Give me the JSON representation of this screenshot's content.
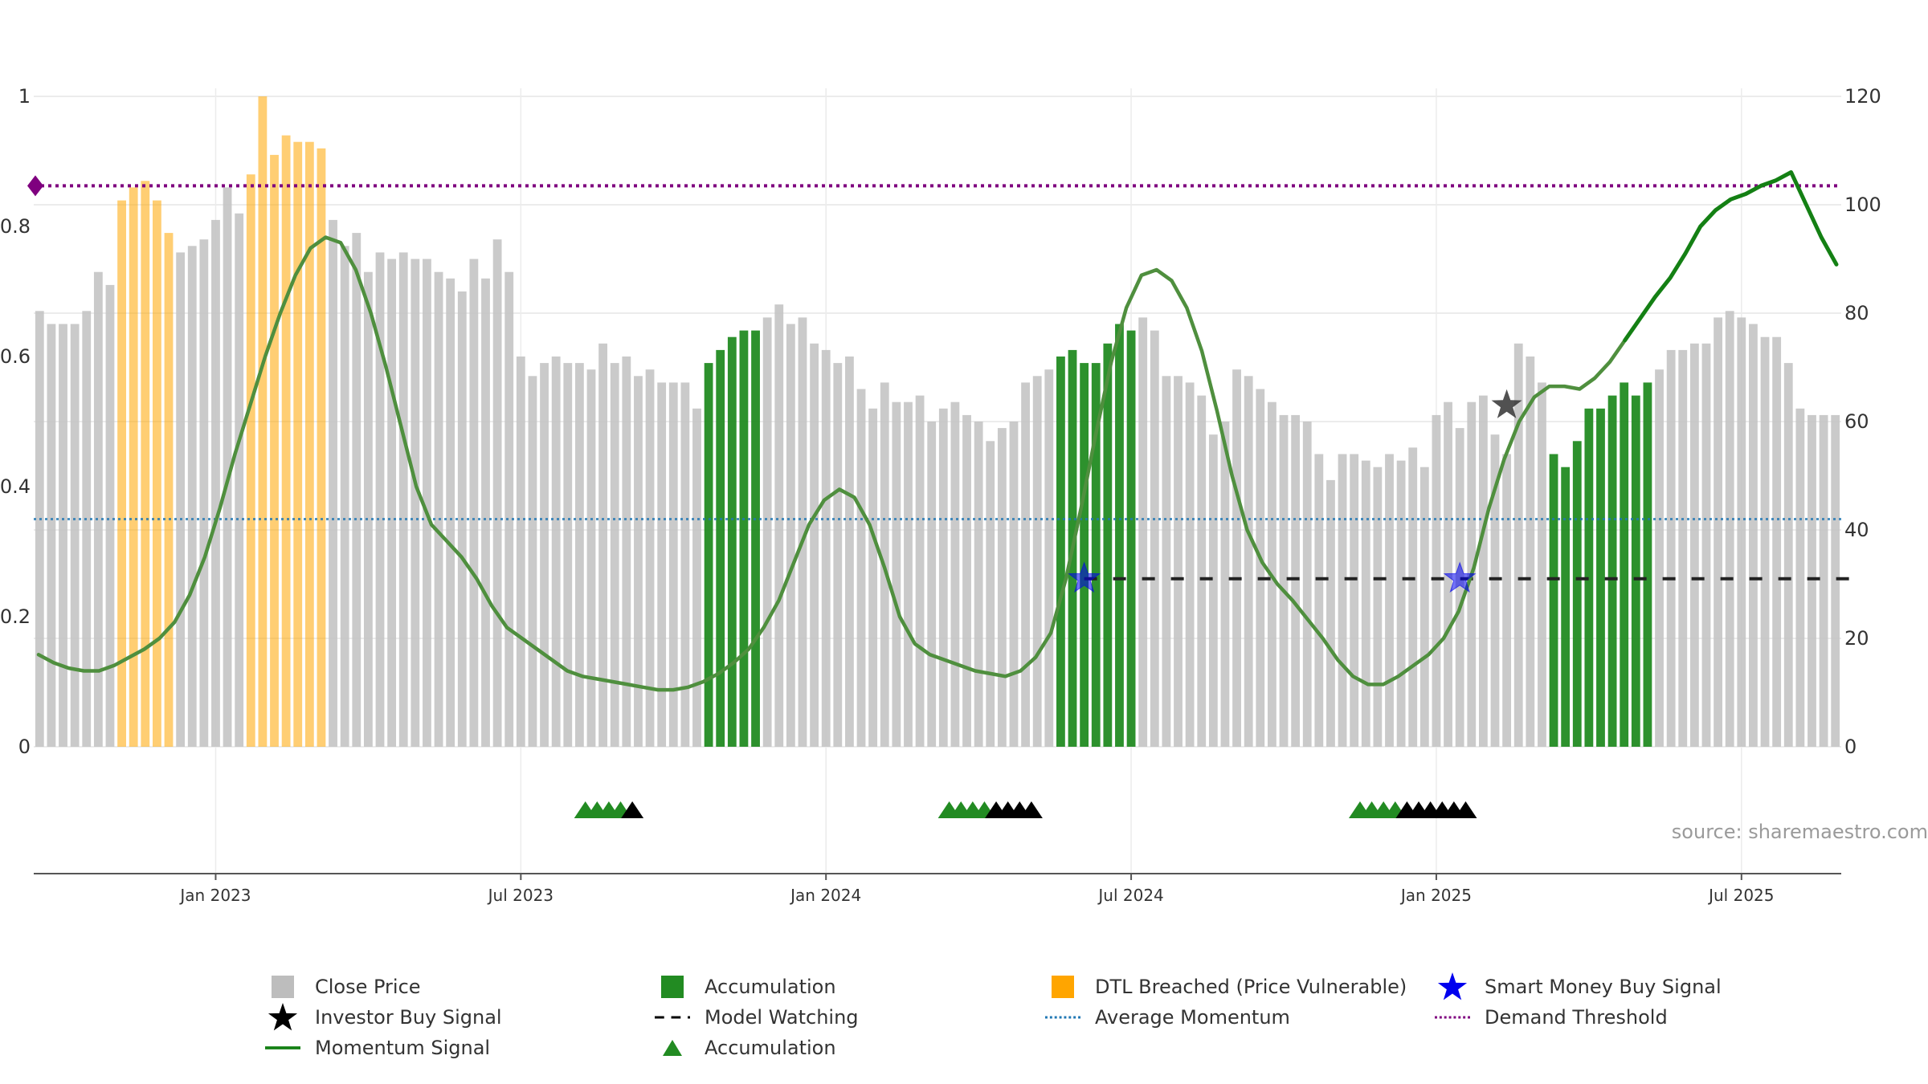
{
  "chart_data": {
    "type": "bar",
    "source": "source: sharemaestro.com",
    "left_axis": {
      "ticks": [
        "0",
        "0.2",
        "0.4",
        "0.6",
        "0.8",
        "1"
      ],
      "ylim": [
        0,
        1
      ]
    },
    "right_axis": {
      "ticks": [
        "0",
        "20",
        "40",
        "60",
        "80",
        "100",
        "120"
      ],
      "ylim": [
        0,
        120
      ]
    },
    "x_axis": {
      "ticks": [
        {
          "label": "Jan 2023",
          "index": 15
        },
        {
          "label": "Jul 2023",
          "index": 41
        },
        {
          "label": "Jan 2024",
          "index": 67
        },
        {
          "label": "Jul 2024",
          "index": 93
        },
        {
          "label": "Jan 2025",
          "index": 119
        },
        {
          "label": "Jul 2025",
          "index": 145
        }
      ]
    },
    "close_price": [
      0.67,
      0.65,
      0.65,
      0.65,
      0.67,
      0.73,
      0.71,
      0.84,
      0.86,
      0.87,
      0.84,
      0.79,
      0.76,
      0.77,
      0.78,
      0.81,
      0.86,
      0.82,
      0.88,
      1.0,
      0.91,
      0.94,
      0.93,
      0.93,
      0.92,
      0.81,
      0.77,
      0.79,
      0.73,
      0.76,
      0.75,
      0.76,
      0.75,
      0.75,
      0.73,
      0.72,
      0.7,
      0.75,
      0.72,
      0.78,
      0.73,
      0.6,
      0.57,
      0.59,
      0.6,
      0.59,
      0.59,
      0.58,
      0.62,
      0.59,
      0.6,
      0.57,
      0.58,
      0.56,
      0.56,
      0.56,
      0.52,
      0.59,
      0.61,
      0.63,
      0.64,
      0.64,
      0.66,
      0.68,
      0.65,
      0.66,
      0.62,
      0.61,
      0.59,
      0.6,
      0.55,
      0.52,
      0.56,
      0.53,
      0.53,
      0.54,
      0.5,
      0.52,
      0.53,
      0.51,
      0.5,
      0.47,
      0.49,
      0.5,
      0.56,
      0.57,
      0.58,
      0.6,
      0.61,
      0.59,
      0.59,
      0.62,
      0.65,
      0.64,
      0.66,
      0.64,
      0.57,
      0.57,
      0.56,
      0.54,
      0.48,
      0.5,
      0.58,
      0.57,
      0.55,
      0.53,
      0.51,
      0.51,
      0.5,
      0.45,
      0.41,
      0.45,
      0.45,
      0.44,
      0.43,
      0.45,
      0.44,
      0.46,
      0.43,
      0.51,
      0.53,
      0.49,
      0.53,
      0.54,
      0.48,
      0.45,
      0.62,
      0.6,
      0.56,
      0.45,
      0.43,
      0.47,
      0.52,
      0.52,
      0.54,
      0.56,
      0.54,
      0.56,
      0.58,
      0.61,
      0.61,
      0.62,
      0.62,
      0.66,
      0.67,
      0.66,
      0.65,
      0.63,
      0.63,
      0.59,
      0.52,
      0.51,
      0.51,
      0.51
    ],
    "bar_category": "gggggggyyyyyggggggyyyyyyyggggggggggggggggggggggggggggggggaaaaagggggggggggggggggggggggggaaaaaaagggggggggggggggggggggggggggggggggggaaaaaaaaaggggggggggggggggggggggggggggg",
    "momentum_signal": [
      17,
      15.5,
      14.5,
      14,
      14,
      15,
      16.5,
      18,
      20,
      23,
      28,
      35,
      44,
      54,
      63,
      72,
      80,
      87,
      92,
      94,
      93,
      88,
      80,
      70,
      59,
      48,
      41,
      38,
      35,
      31,
      26,
      22,
      20,
      18,
      16,
      14,
      13,
      12.5,
      12,
      11.5,
      11,
      10.5,
      10.5,
      11,
      12,
      13.5,
      15.5,
      18,
      22,
      27,
      34,
      41,
      45.5,
      47.5,
      46,
      41,
      33,
      24,
      19,
      17,
      16,
      15,
      14,
      13.5,
      13,
      14,
      16.5,
      21,
      31,
      44,
      58,
      71,
      81,
      87,
      88,
      86,
      81,
      73,
      62,
      50,
      40,
      34,
      30,
      27,
      23.5,
      20,
      16,
      13,
      11.5,
      11.5,
      13,
      15,
      17,
      20,
      25,
      33,
      44,
      53,
      60,
      64.5,
      66.5,
      66.5,
      66,
      68,
      71,
      75,
      79,
      83,
      86.5,
      91,
      96,
      99,
      101,
      102,
      103.5,
      104.5,
      106,
      100,
      94,
      89
    ],
    "momentum_colors": {
      "muted": "#4f8f3e",
      "bright": "#148014"
    },
    "momentum_muted_until_index": 105,
    "average_momentum": 42,
    "demand_threshold": 103.5,
    "model_watching": {
      "from_index": 89,
      "to_index": 155,
      "value": 31
    },
    "smart_money_buy_signal": [
      {
        "index": 89,
        "value": 31
      },
      {
        "index": 121,
        "value": 31
      }
    ],
    "investor_buy_signal": [
      {
        "index": 125,
        "value": 63
      }
    ],
    "accumulation_markers": {
      "green": [
        46.5,
        47.5,
        48.5,
        49.5,
        77.5,
        78.5,
        79.5,
        80.5,
        112.5,
        113.5,
        114.5,
        115.5
      ],
      "black": [
        50.5,
        81.5,
        82.5,
        83.5,
        84.5,
        116.5,
        117.5,
        118.5,
        119.5,
        120.5,
        121.5
      ]
    },
    "colors": {
      "close_price": "#c4c4c4",
      "accumulation": "#228b22",
      "dtl_breached": "#ffa500",
      "average_momentum": "#1f77b4",
      "demand_threshold": "#7f007f",
      "smart_money": "#0000ee",
      "investor": "#000000"
    },
    "legend": [
      {
        "label": "Close Price",
        "symbol": "square",
        "color": "#bdbdbd"
      },
      {
        "label": "Accumulation",
        "symbol": "square",
        "color": "#228b22"
      },
      {
        "label": "DTL Breached (Price Vulnerable)",
        "symbol": "square",
        "color": "#ffa500"
      },
      {
        "label": "Smart Money Buy Signal",
        "symbol": "star",
        "color": "#0000ee"
      },
      {
        "label": "Investor Buy Signal",
        "symbol": "star",
        "color": "#000000"
      },
      {
        "label": "Model Watching",
        "symbol": "dash",
        "color": "#000000"
      },
      {
        "label": "Average Momentum",
        "symbol": "dot",
        "color": "#1f77b4"
      },
      {
        "label": "Demand Threshold",
        "symbol": "dot",
        "color": "#7f007f"
      },
      {
        "label": "Momentum Signal",
        "symbol": "line",
        "color": "#148014"
      },
      {
        "label": "Accumulation",
        "symbol": "triangle",
        "color": "#228b22"
      }
    ]
  }
}
